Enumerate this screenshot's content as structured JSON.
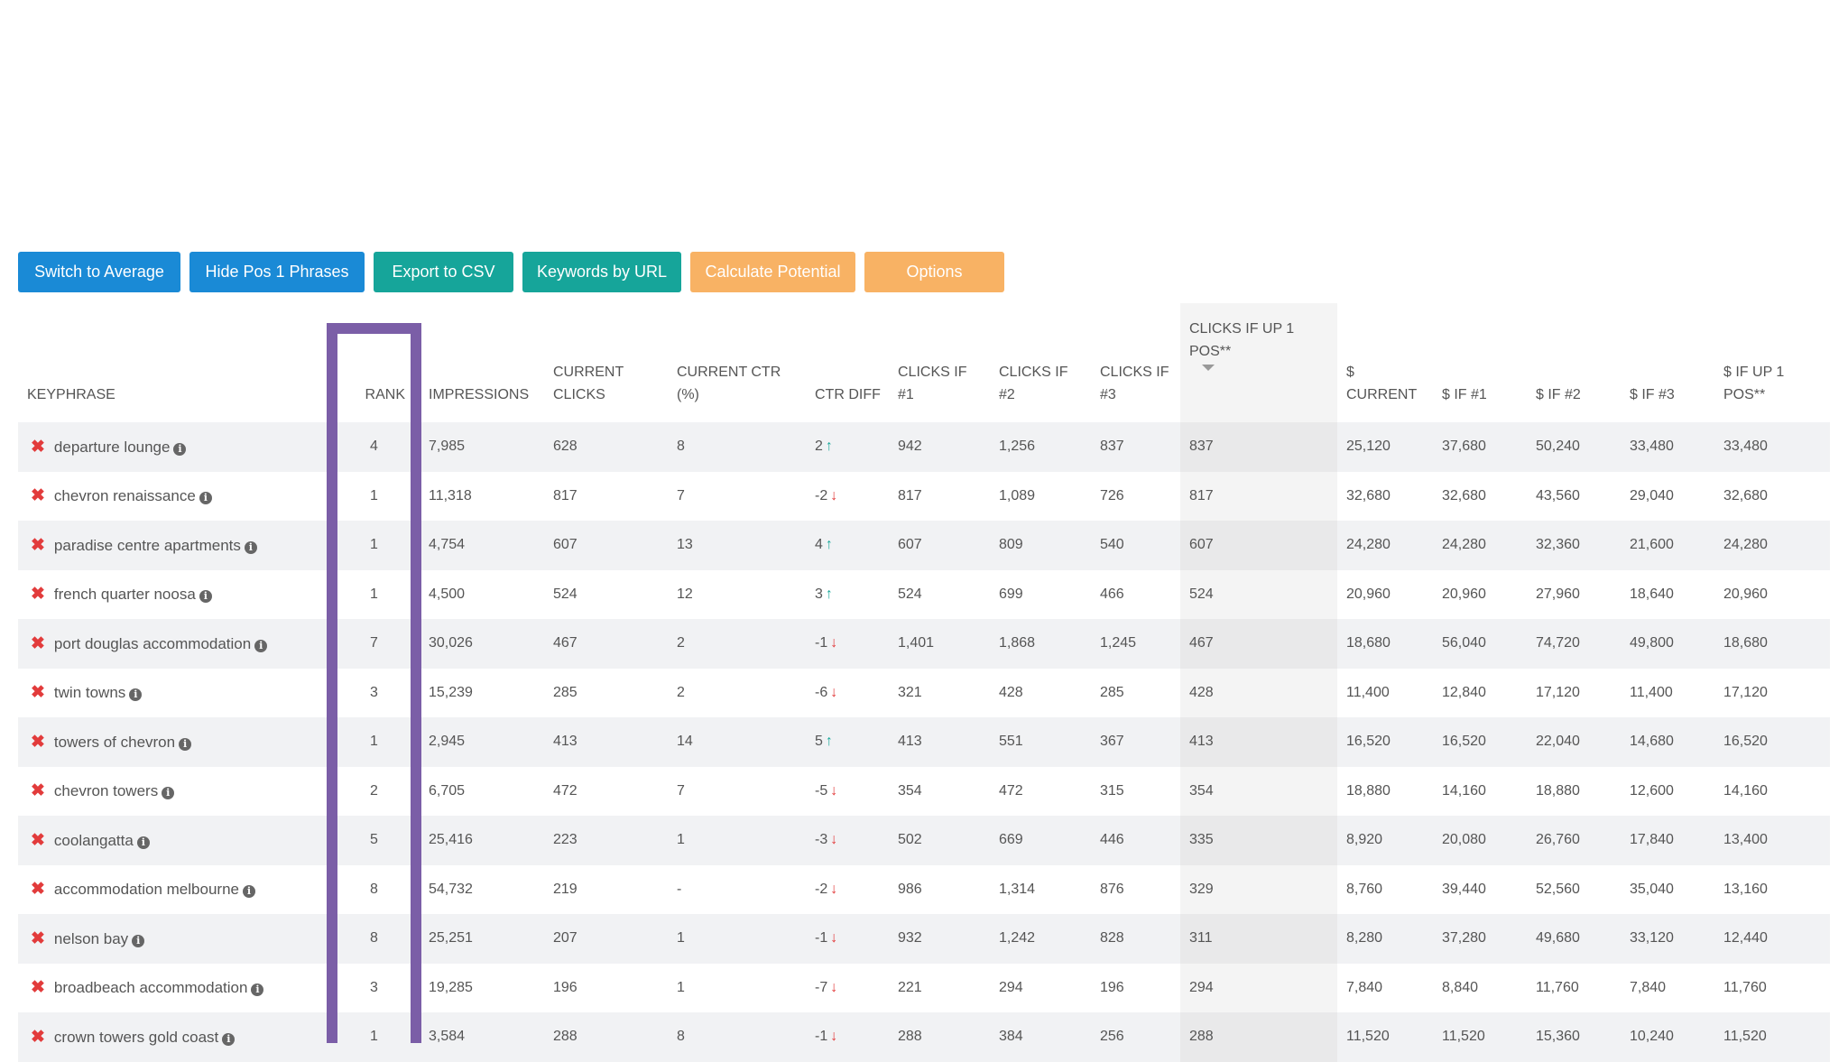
{
  "toolbar": {
    "switch_avg": "Switch to Average",
    "hide_pos1": "Hide Pos 1 Phrases",
    "export_csv": "Export to CSV",
    "keywords_url": "Keywords by URL",
    "calc_potential": "Calculate Potential",
    "options": "Options"
  },
  "colors": {
    "blue": "#1a8ad6",
    "teal": "#16a59a",
    "orange": "#f8b264",
    "highlight": "#7b5ea7",
    "up": "#1aa89a",
    "down": "#e23b3b"
  },
  "icons": {
    "remove": "remove-x-icon",
    "info": "info-icon",
    "up": "arrow-up-icon",
    "down": "arrow-down-icon",
    "sort": "sort-desc-icon"
  },
  "table": {
    "headers": {
      "keyphrase": "KEYPHRASE",
      "rank": "RANK",
      "impressions": "IMPRESSIONS",
      "current_clicks": "CURRENT CLICKS",
      "current_ctr": "CURRENT CTR (%)",
      "ctr_diff": "CTR DIFF",
      "clicks1": "CLICKS IF #1",
      "clicks2": "CLICKS IF #2",
      "clicks3": "CLICKS IF #3",
      "clicks_up1": "CLICKS IF UP 1 POS**",
      "dollar_current": "$ CURRENT",
      "dollar1": "$ IF #1",
      "dollar2": "$ IF #2",
      "dollar3": "$ IF #3",
      "dollar_up1": "$ IF UP 1 POS**"
    },
    "rows": [
      {
        "keyphrase": "departure lounge",
        "rank": "4",
        "impressions": "7,985",
        "current_clicks": "628",
        "current_ctr": "8",
        "ctr_diff": "2",
        "dir": "up",
        "clicks1": "942",
        "clicks2": "1,256",
        "clicks3": "837",
        "clicks_up1": "837",
        "dollar_current": "25,120",
        "dollar1": "37,680",
        "dollar2": "50,240",
        "dollar3": "33,480",
        "dollar_up1": "33,480"
      },
      {
        "keyphrase": "chevron renaissance",
        "rank": "1",
        "impressions": "11,318",
        "current_clicks": "817",
        "current_ctr": "7",
        "ctr_diff": "-2",
        "dir": "down",
        "clicks1": "817",
        "clicks2": "1,089",
        "clicks3": "726",
        "clicks_up1": "817",
        "dollar_current": "32,680",
        "dollar1": "32,680",
        "dollar2": "43,560",
        "dollar3": "29,040",
        "dollar_up1": "32,680"
      },
      {
        "keyphrase": "paradise centre apartments",
        "rank": "1",
        "impressions": "4,754",
        "current_clicks": "607",
        "current_ctr": "13",
        "ctr_diff": "4",
        "dir": "up",
        "clicks1": "607",
        "clicks2": "809",
        "clicks3": "540",
        "clicks_up1": "607",
        "dollar_current": "24,280",
        "dollar1": "24,280",
        "dollar2": "32,360",
        "dollar3": "21,600",
        "dollar_up1": "24,280"
      },
      {
        "keyphrase": "french quarter noosa",
        "rank": "1",
        "impressions": "4,500",
        "current_clicks": "524",
        "current_ctr": "12",
        "ctr_diff": "3",
        "dir": "up",
        "clicks1": "524",
        "clicks2": "699",
        "clicks3": "466",
        "clicks_up1": "524",
        "dollar_current": "20,960",
        "dollar1": "20,960",
        "dollar2": "27,960",
        "dollar3": "18,640",
        "dollar_up1": "20,960"
      },
      {
        "keyphrase": "port douglas accommodation",
        "rank": "7",
        "impressions": "30,026",
        "current_clicks": "467",
        "current_ctr": "2",
        "ctr_diff": "-1",
        "dir": "down",
        "clicks1": "1,401",
        "clicks2": "1,868",
        "clicks3": "1,245",
        "clicks_up1": "467",
        "dollar_current": "18,680",
        "dollar1": "56,040",
        "dollar2": "74,720",
        "dollar3": "49,800",
        "dollar_up1": "18,680"
      },
      {
        "keyphrase": "twin towns",
        "rank": "3",
        "impressions": "15,239",
        "current_clicks": "285",
        "current_ctr": "2",
        "ctr_diff": "-6",
        "dir": "down",
        "clicks1": "321",
        "clicks2": "428",
        "clicks3": "285",
        "clicks_up1": "428",
        "dollar_current": "11,400",
        "dollar1": "12,840",
        "dollar2": "17,120",
        "dollar3": "11,400",
        "dollar_up1": "17,120"
      },
      {
        "keyphrase": "towers of chevron",
        "rank": "1",
        "impressions": "2,945",
        "current_clicks": "413",
        "current_ctr": "14",
        "ctr_diff": "5",
        "dir": "up",
        "clicks1": "413",
        "clicks2": "551",
        "clicks3": "367",
        "clicks_up1": "413",
        "dollar_current": "16,520",
        "dollar1": "16,520",
        "dollar2": "22,040",
        "dollar3": "14,680",
        "dollar_up1": "16,520"
      },
      {
        "keyphrase": "chevron towers",
        "rank": "2",
        "impressions": "6,705",
        "current_clicks": "472",
        "current_ctr": "7",
        "ctr_diff": "-5",
        "dir": "down",
        "clicks1": "354",
        "clicks2": "472",
        "clicks3": "315",
        "clicks_up1": "354",
        "dollar_current": "18,880",
        "dollar1": "14,160",
        "dollar2": "18,880",
        "dollar3": "12,600",
        "dollar_up1": "14,160"
      },
      {
        "keyphrase": "coolangatta",
        "rank": "5",
        "impressions": "25,416",
        "current_clicks": "223",
        "current_ctr": "1",
        "ctr_diff": "-3",
        "dir": "down",
        "clicks1": "502",
        "clicks2": "669",
        "clicks3": "446",
        "clicks_up1": "335",
        "dollar_current": "8,920",
        "dollar1": "20,080",
        "dollar2": "26,760",
        "dollar3": "17,840",
        "dollar_up1": "13,400"
      },
      {
        "keyphrase": "accommodation melbourne",
        "rank": "8",
        "impressions": "54,732",
        "current_clicks": "219",
        "current_ctr": "-",
        "ctr_diff": "-2",
        "dir": "down",
        "clicks1": "986",
        "clicks2": "1,314",
        "clicks3": "876",
        "clicks_up1": "329",
        "dollar_current": "8,760",
        "dollar1": "39,440",
        "dollar2": "52,560",
        "dollar3": "35,040",
        "dollar_up1": "13,160"
      },
      {
        "keyphrase": "nelson bay",
        "rank": "8",
        "impressions": "25,251",
        "current_clicks": "207",
        "current_ctr": "1",
        "ctr_diff": "-1",
        "dir": "down",
        "clicks1": "932",
        "clicks2": "1,242",
        "clicks3": "828",
        "clicks_up1": "311",
        "dollar_current": "8,280",
        "dollar1": "37,280",
        "dollar2": "49,680",
        "dollar3": "33,120",
        "dollar_up1": "12,440"
      },
      {
        "keyphrase": "broadbeach accommodation",
        "rank": "3",
        "impressions": "19,285",
        "current_clicks": "196",
        "current_ctr": "1",
        "ctr_diff": "-7",
        "dir": "down",
        "clicks1": "221",
        "clicks2": "294",
        "clicks3": "196",
        "clicks_up1": "294",
        "dollar_current": "7,840",
        "dollar1": "8,840",
        "dollar2": "11,760",
        "dollar3": "7,840",
        "dollar_up1": "11,760"
      },
      {
        "keyphrase": "crown towers gold coast",
        "rank": "1",
        "impressions": "3,584",
        "current_clicks": "288",
        "current_ctr": "8",
        "ctr_diff": "-1",
        "dir": "down",
        "clicks1": "288",
        "clicks2": "384",
        "clicks3": "256",
        "clicks_up1": "288",
        "dollar_current": "11,520",
        "dollar1": "11,520",
        "dollar2": "15,360",
        "dollar3": "10,240",
        "dollar_up1": "11,520"
      }
    ]
  }
}
